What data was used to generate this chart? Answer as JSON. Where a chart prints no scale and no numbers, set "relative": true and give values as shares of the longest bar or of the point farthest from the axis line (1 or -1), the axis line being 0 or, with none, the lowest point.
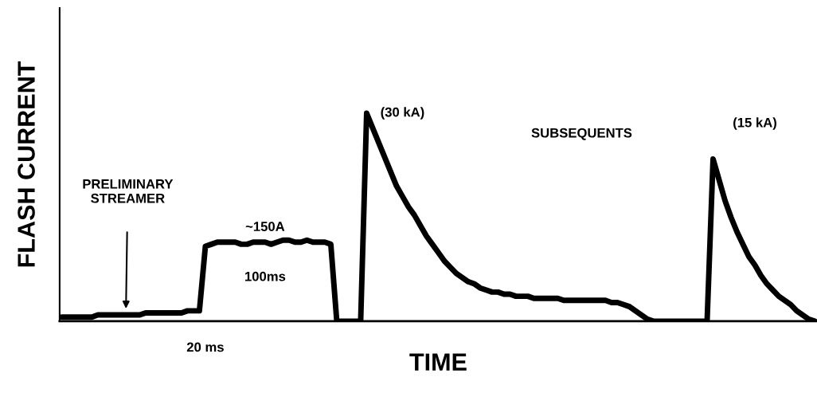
{
  "chart_data": {
    "type": "line",
    "relative": true,
    "xlabel": "TIME",
    "ylabel": "FLASH CURRENT",
    "categories": [
      null,
      null,
      null,
      null,
      null,
      null,
      null,
      null,
      null,
      null,
      null,
      null,
      null,
      null,
      null,
      null,
      null,
      null,
      null,
      null,
      null,
      null,
      null,
      null,
      null,
      null,
      null,
      null,
      null,
      null,
      null,
      null,
      null,
      null,
      null,
      null,
      null,
      null,
      null,
      null,
      null,
      null,
      null,
      null,
      null,
      null,
      null,
      null,
      null,
      null,
      null,
      null,
      null,
      null,
      null,
      null,
      null,
      null,
      null,
      null,
      null,
      null,
      null,
      null,
      null,
      null,
      null,
      null,
      null,
      null,
      null,
      null,
      null,
      null,
      null,
      null,
      null,
      null,
      null,
      null,
      null,
      null,
      null,
      null,
      null,
      null,
      null,
      null,
      null,
      null,
      null,
      null,
      null,
      null,
      null,
      null,
      null,
      null,
      null,
      null,
      null,
      null,
      null,
      null,
      null,
      null,
      null,
      null,
      null,
      null,
      null,
      null,
      null,
      null,
      null,
      null,
      null,
      null,
      null,
      null,
      null,
      null,
      null,
      null,
      null,
      null,
      null
    ],
    "series": [
      {
        "color": "#000000",
        "values": [
          0.02,
          0.02,
          0.02,
          0.02,
          0.02,
          0.02,
          0.03,
          0.03,
          0.03,
          0.03,
          0.03,
          0.03,
          0.03,
          0.03,
          0.04,
          0.04,
          0.04,
          0.04,
          0.04,
          0.04,
          0.04,
          0.05,
          0.05,
          0.05,
          0.36,
          0.37,
          0.38,
          0.38,
          0.38,
          0.38,
          0.37,
          0.37,
          0.38,
          0.38,
          0.38,
          0.37,
          0.38,
          0.39,
          0.39,
          0.38,
          0.38,
          0.39,
          0.38,
          0.38,
          0.38,
          0.37,
          0,
          0,
          0,
          0,
          0,
          1.0,
          0.93,
          0.86,
          0.79,
          0.72,
          0.65,
          0.6,
          0.55,
          0.51,
          0.46,
          0.41,
          0.37,
          0.33,
          0.29,
          0.26,
          0.23,
          0.21,
          0.19,
          0.18,
          0.16,
          0.15,
          0.14,
          0.14,
          0.13,
          0.13,
          0.12,
          0.12,
          0.12,
          0.11,
          0.11,
          0.11,
          0.11,
          0.11,
          0.1,
          0.1,
          0.1,
          0.1,
          0.1,
          0.1,
          0.1,
          0.1,
          0.09,
          0.09,
          0.08,
          0.07,
          0.05,
          0.03,
          0.01,
          0,
          0,
          0,
          0,
          0,
          0,
          0,
          0,
          0,
          0,
          0.78,
          0.68,
          0.58,
          0.5,
          0.43,
          0.37,
          0.31,
          0.27,
          0.22,
          0.18,
          0.15,
          0.12,
          0.1,
          0.08,
          0.05,
          0.03,
          0.01,
          0
        ]
      }
    ],
    "annotations": [
      "PRELIMINARY\nSTREAMER",
      "~150A",
      "100ms",
      "20 ms",
      "(30 kA)",
      "SUBSEQUENTS",
      "(15 kA)"
    ]
  }
}
